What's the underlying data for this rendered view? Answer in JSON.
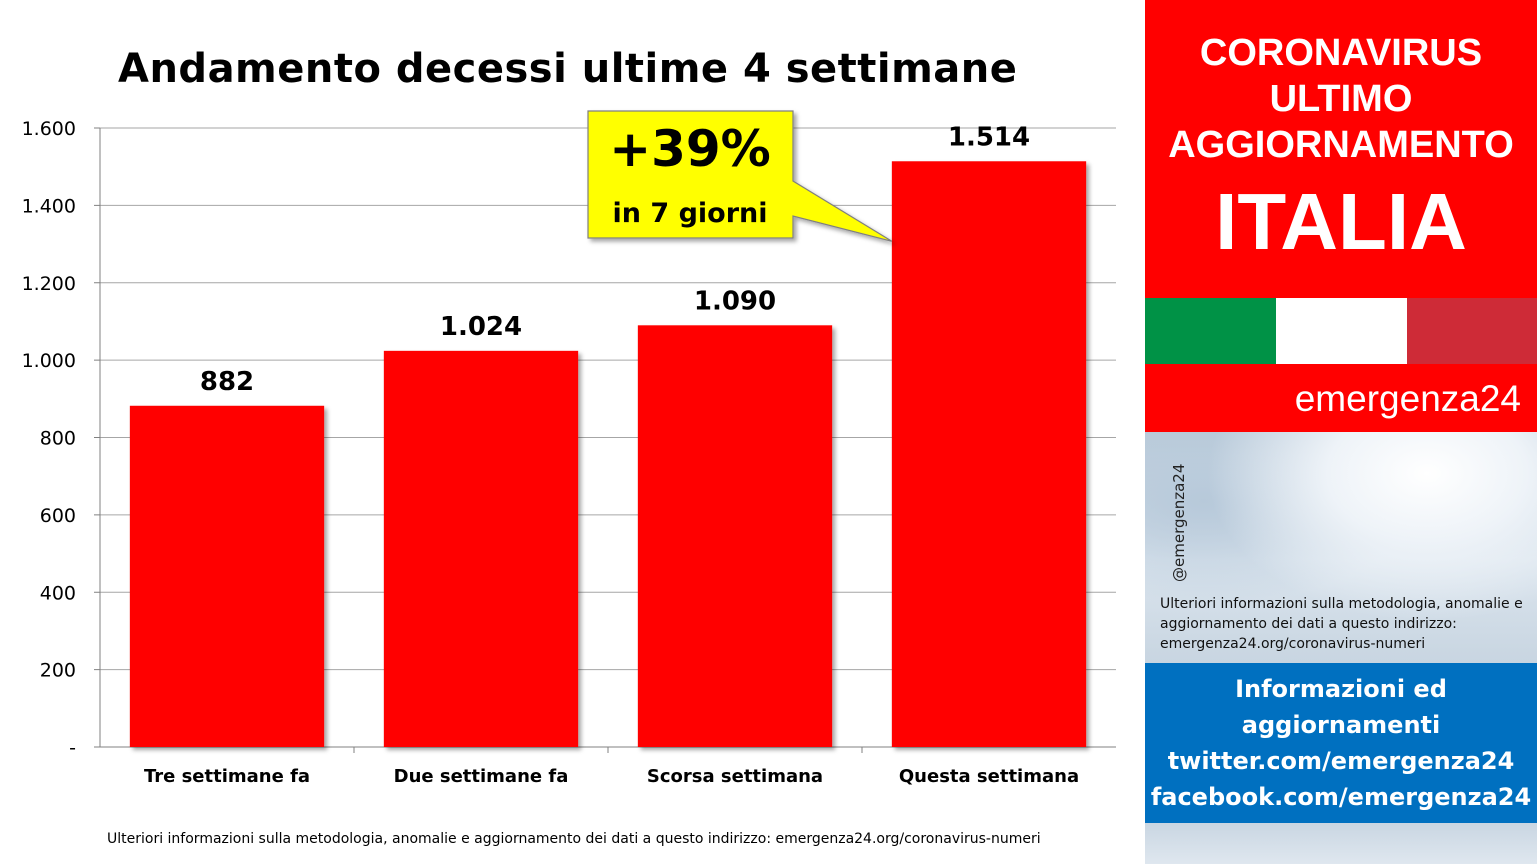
{
  "chart_data": {
    "type": "bar",
    "title": "Andamento decessi ultime 4 settimane",
    "categories": [
      "Tre settimane fa",
      "Due settimane fa",
      "Scorsa settimana",
      "Questa settimana"
    ],
    "values": [
      882,
      1024,
      1090,
      1514
    ],
    "value_labels": [
      "882",
      "1.024",
      "1.090",
      "1.514"
    ],
    "ylim": [
      0,
      1600
    ],
    "yticks": [
      0,
      200,
      400,
      600,
      800,
      1000,
      1200,
      1400,
      1600
    ],
    "ytick_labels": [
      "-",
      "200",
      "400",
      "600",
      "800",
      "1.000",
      "1.200",
      "1.400",
      "1.600"
    ],
    "grid": true,
    "bar_color": "#ff0000",
    "annotation": {
      "text_main": "+39%",
      "text_sub": "in 7 giorni",
      "background": "#ffff00",
      "points_to": "Questa settimana"
    }
  },
  "footer_note": "Ulteriori informazioni sulla metodologia, anomalie e aggiornamento dei dati a questo indirizzo: emergenza24.org/coronavirus-numeri",
  "sidebar": {
    "header_lines": [
      "CORONAVIRUS",
      "ULTIMO",
      "AGGIORNAMENTO",
      "ITALIA"
    ],
    "brand": "emergenza24",
    "handle": "@emergenza24",
    "info_text": "Ulteriori informazioni sulla metodologia, anomalie e aggiornamento dei dati a questo indirizzo: emergenza24.org/coronavirus-numeri",
    "social_lines": [
      "Informazioni ed",
      "aggiornamenti",
      "twitter.com/emergenza24",
      "facebook.com/emergenza24"
    ],
    "colors": {
      "red": "#ff0000",
      "blue": "#0070c0",
      "flag_green": "#009246",
      "flag_white": "#ffffff",
      "flag_red": "#ce2b37"
    }
  }
}
